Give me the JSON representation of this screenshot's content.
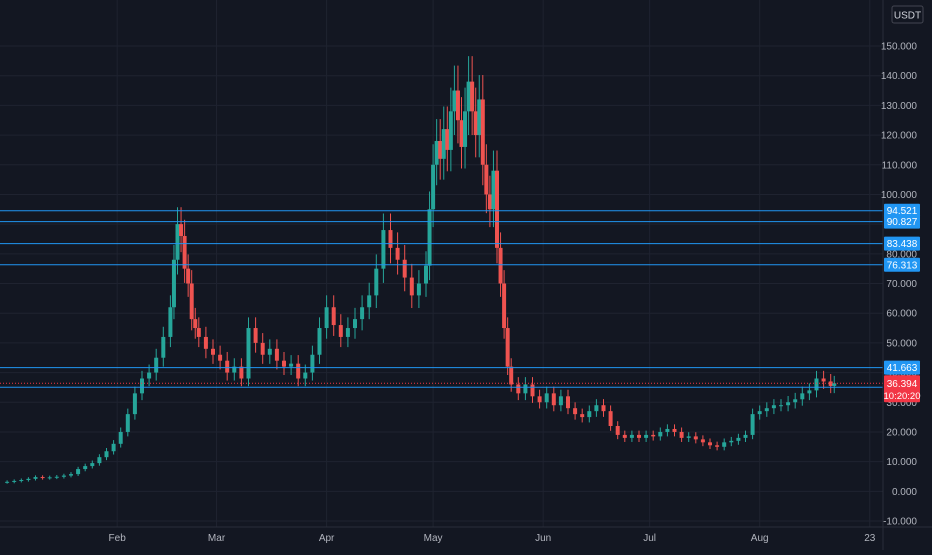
{
  "currency": "USDT",
  "colors": {
    "background": "#131722",
    "grid": "#1f2330",
    "axis_text": "#b2b5be",
    "up": "#26a69a",
    "down": "#ef5350",
    "hline": "#2196f3",
    "current_price": "#f23645"
  },
  "y_axis": {
    "min": -10,
    "max": 150,
    "ticks": [
      "-10.000",
      "0.000",
      "10.000",
      "20.000",
      "30.000",
      "40.000",
      "50.000",
      "60.000",
      "70.000",
      "80.000",
      "90.000",
      "100.000",
      "110.000",
      "120.000",
      "130.000",
      "140.000",
      "150.000"
    ]
  },
  "x_axis": {
    "labels": [
      {
        "text": "Feb",
        "day": 31
      },
      {
        "text": "Mar",
        "day": 59
      },
      {
        "text": "Apr",
        "day": 90
      },
      {
        "text": "May",
        "day": 120
      },
      {
        "text": "Jun",
        "day": 151
      },
      {
        "text": "Jul",
        "day": 181
      },
      {
        "text": "Aug",
        "day": 212
      },
      {
        "text": "23",
        "day": 243
      }
    ]
  },
  "chart_data": {
    "type": "candlestick",
    "currency": "USDT",
    "horizontal_levels": [
      94.521,
      90.827,
      83.438,
      76.313,
      41.663,
      35.068
    ],
    "current_price": {
      "value": 36.394,
      "countdown": "10:20:20"
    },
    "series": [
      {
        "day": 0,
        "close": 3.2
      },
      {
        "day": 2,
        "close": 3.5
      },
      {
        "day": 4,
        "close": 3.8
      },
      {
        "day": 6,
        "close": 4.2
      },
      {
        "day": 8,
        "close": 4.8
      },
      {
        "day": 10,
        "close": 4.5
      },
      {
        "day": 12,
        "close": 4.7
      },
      {
        "day": 14,
        "close": 4.9
      },
      {
        "day": 16,
        "close": 5.3
      },
      {
        "day": 18,
        "close": 5.8
      },
      {
        "day": 20,
        "close": 7.5
      },
      {
        "day": 22,
        "close": 8.5
      },
      {
        "day": 24,
        "close": 9.5
      },
      {
        "day": 26,
        "close": 11.5
      },
      {
        "day": 28,
        "close": 13.5
      },
      {
        "day": 30,
        "close": 16
      },
      {
        "day": 32,
        "close": 20
      },
      {
        "day": 34,
        "close": 26
      },
      {
        "day": 36,
        "close": 33
      },
      {
        "day": 38,
        "close": 38
      },
      {
        "day": 40,
        "close": 40
      },
      {
        "day": 42,
        "close": 45
      },
      {
        "day": 44,
        "close": 52
      },
      {
        "day": 46,
        "close": 62
      },
      {
        "day": 47,
        "close": 78
      },
      {
        "day": 48,
        "close": 90
      },
      {
        "day": 49,
        "close": 86
      },
      {
        "day": 50,
        "close": 75
      },
      {
        "day": 51,
        "close": 70
      },
      {
        "day": 52,
        "close": 58
      },
      {
        "day": 53,
        "close": 55
      },
      {
        "day": 54,
        "close": 52
      },
      {
        "day": 56,
        "close": 48
      },
      {
        "day": 58,
        "close": 46
      },
      {
        "day": 60,
        "close": 44
      },
      {
        "day": 62,
        "close": 40
      },
      {
        "day": 64,
        "close": 42
      },
      {
        "day": 66,
        "close": 38
      },
      {
        "day": 68,
        "close": 55
      },
      {
        "day": 70,
        "close": 50
      },
      {
        "day": 72,
        "close": 46
      },
      {
        "day": 74,
        "close": 48
      },
      {
        "day": 76,
        "close": 44
      },
      {
        "day": 78,
        "close": 42
      },
      {
        "day": 80,
        "close": 43
      },
      {
        "day": 82,
        "close": 38
      },
      {
        "day": 84,
        "close": 40
      },
      {
        "day": 86,
        "close": 46
      },
      {
        "day": 88,
        "close": 55
      },
      {
        "day": 90,
        "close": 62
      },
      {
        "day": 92,
        "close": 56
      },
      {
        "day": 94,
        "close": 52
      },
      {
        "day": 96,
        "close": 55
      },
      {
        "day": 98,
        "close": 58
      },
      {
        "day": 100,
        "close": 62
      },
      {
        "day": 102,
        "close": 66
      },
      {
        "day": 104,
        "close": 75
      },
      {
        "day": 106,
        "close": 88
      },
      {
        "day": 108,
        "close": 82
      },
      {
        "day": 110,
        "close": 78
      },
      {
        "day": 112,
        "close": 72
      },
      {
        "day": 114,
        "close": 66
      },
      {
        "day": 116,
        "close": 70
      },
      {
        "day": 118,
        "close": 76
      },
      {
        "day": 119,
        "close": 95
      },
      {
        "day": 120,
        "close": 110
      },
      {
        "day": 121,
        "close": 118
      },
      {
        "day": 122,
        "close": 112
      },
      {
        "day": 123,
        "close": 122
      },
      {
        "day": 124,
        "close": 115
      },
      {
        "day": 125,
        "close": 128
      },
      {
        "day": 126,
        "close": 135
      },
      {
        "day": 127,
        "close": 125
      },
      {
        "day": 128,
        "close": 116
      },
      {
        "day": 129,
        "close": 128
      },
      {
        "day": 130,
        "close": 138
      },
      {
        "day": 131,
        "close": 128
      },
      {
        "day": 132,
        "close": 120
      },
      {
        "day": 133,
        "close": 132
      },
      {
        "day": 134,
        "close": 110
      },
      {
        "day": 135,
        "close": 100
      },
      {
        "day": 136,
        "close": 95
      },
      {
        "day": 137,
        "close": 108
      },
      {
        "day": 138,
        "close": 82
      },
      {
        "day": 139,
        "close": 70
      },
      {
        "day": 140,
        "close": 55
      },
      {
        "day": 141,
        "close": 42
      },
      {
        "day": 142,
        "close": 36
      },
      {
        "day": 144,
        "close": 33
      },
      {
        "day": 146,
        "close": 36
      },
      {
        "day": 148,
        "close": 32
      },
      {
        "day": 150,
        "close": 30
      },
      {
        "day": 152,
        "close": 33
      },
      {
        "day": 154,
        "close": 29
      },
      {
        "day": 156,
        "close": 32
      },
      {
        "day": 158,
        "close": 28
      },
      {
        "day": 160,
        "close": 26
      },
      {
        "day": 162,
        "close": 25
      },
      {
        "day": 164,
        "close": 27
      },
      {
        "day": 166,
        "close": 29
      },
      {
        "day": 168,
        "close": 27
      },
      {
        "day": 170,
        "close": 22
      },
      {
        "day": 172,
        "close": 19
      },
      {
        "day": 174,
        "close": 18
      },
      {
        "day": 176,
        "close": 19
      },
      {
        "day": 178,
        "close": 18
      },
      {
        "day": 180,
        "close": 19
      },
      {
        "day": 182,
        "close": 18.5
      },
      {
        "day": 184,
        "close": 20
      },
      {
        "day": 186,
        "close": 21
      },
      {
        "day": 188,
        "close": 20
      },
      {
        "day": 190,
        "close": 18
      },
      {
        "day": 192,
        "close": 18.5
      },
      {
        "day": 194,
        "close": 17.5
      },
      {
        "day": 196,
        "close": 16.5
      },
      {
        "day": 198,
        "close": 15.5
      },
      {
        "day": 200,
        "close": 15
      },
      {
        "day": 202,
        "close": 16.5
      },
      {
        "day": 204,
        "close": 17
      },
      {
        "day": 206,
        "close": 18
      },
      {
        "day": 208,
        "close": 19
      },
      {
        "day": 210,
        "close": 26
      },
      {
        "day": 212,
        "close": 27
      },
      {
        "day": 214,
        "close": 28
      },
      {
        "day": 216,
        "close": 29
      },
      {
        "day": 218,
        "close": 29
      },
      {
        "day": 220,
        "close": 30
      },
      {
        "day": 222,
        "close": 31
      },
      {
        "day": 224,
        "close": 33
      },
      {
        "day": 226,
        "close": 34
      },
      {
        "day": 228,
        "close": 38
      },
      {
        "day": 230,
        "close": 37
      },
      {
        "day": 232,
        "close": 35.5
      },
      {
        "day": 233,
        "close": 36.394
      }
    ]
  }
}
